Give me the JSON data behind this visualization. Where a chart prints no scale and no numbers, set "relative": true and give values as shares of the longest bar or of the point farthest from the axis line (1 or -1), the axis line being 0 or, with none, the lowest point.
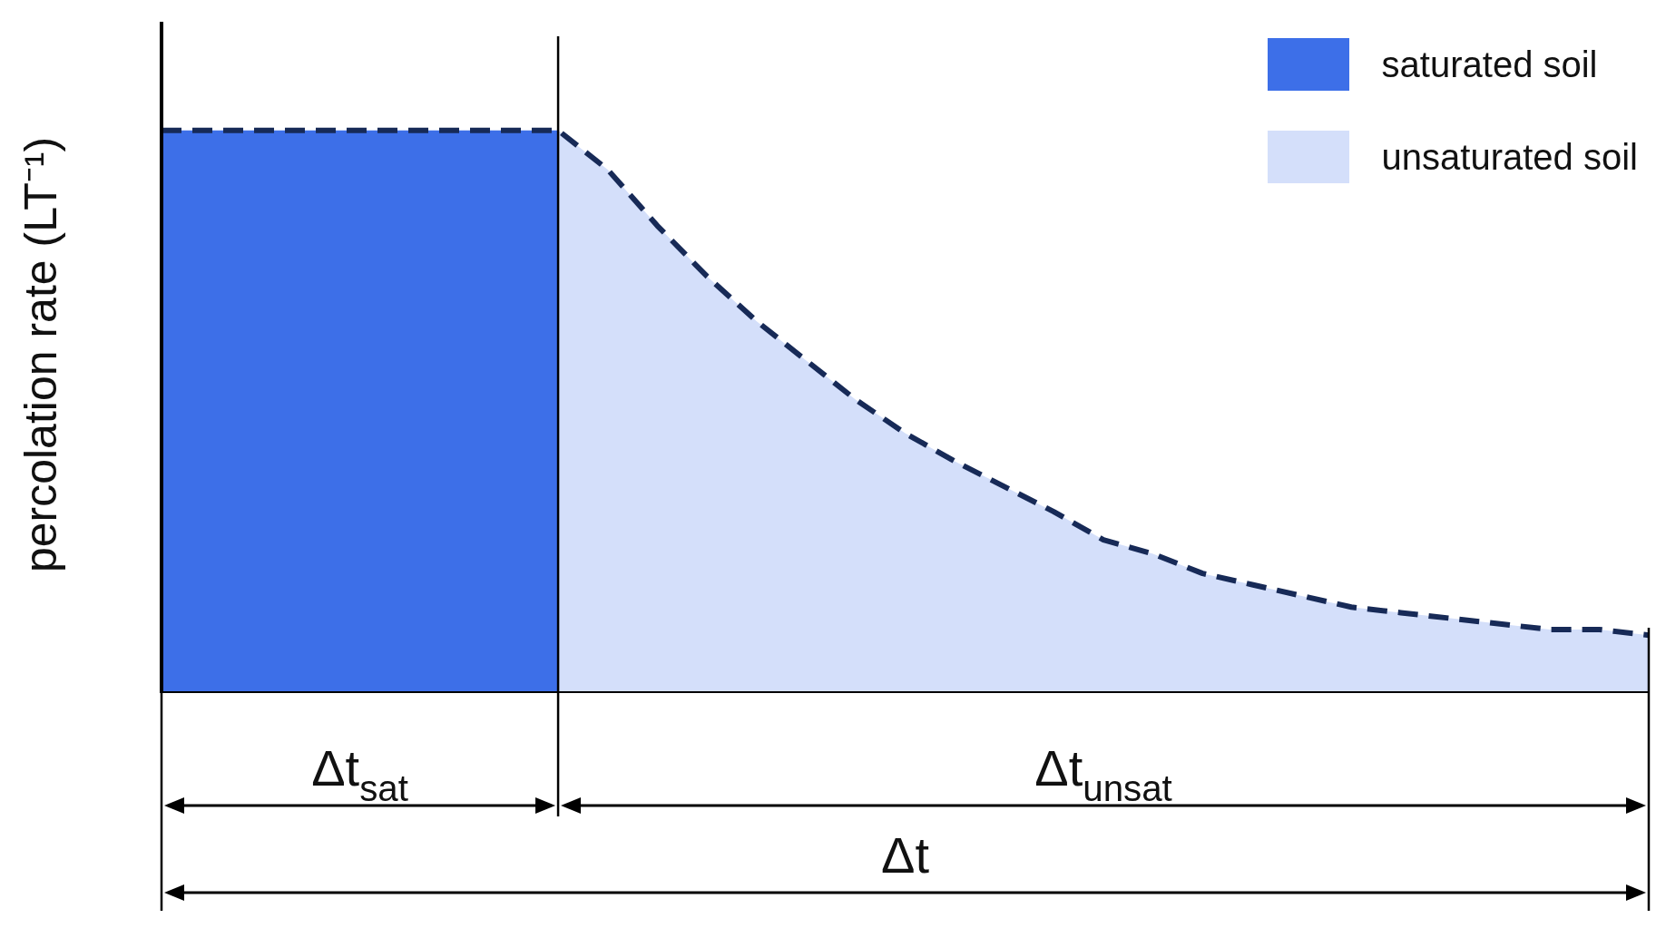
{
  "chart_data": {
    "type": "area",
    "relative": true,
    "ylabel": "percolation rate (LT⁻¹)",
    "legend": "top right",
    "line_style": "dashed",
    "marker": "none",
    "categories": [
      null,
      null,
      null,
      null,
      null,
      null,
      null,
      null,
      null,
      null,
      null,
      null,
      null,
      null,
      null,
      null,
      null,
      null,
      null,
      null,
      null,
      null,
      null,
      null,
      null,
      null,
      null,
      null,
      null,
      null,
      null
    ],
    "series": [
      {
        "name": "saturated soil",
        "color": "#3d6fe8",
        "values": [
          1,
          1,
          1,
          1,
          1,
          1,
          1,
          1,
          1,
          null,
          null,
          null,
          null,
          null,
          null,
          null,
          null,
          null,
          null,
          null,
          null,
          null,
          null,
          null,
          null,
          null,
          null,
          null,
          null,
          null,
          null
        ]
      },
      {
        "name": "unsaturated soil",
        "color": "#d4dffa",
        "values": [
          null,
          null,
          null,
          null,
          null,
          null,
          null,
          null,
          1,
          0.93,
          0.83,
          0.74,
          0.66,
          0.59,
          0.52,
          0.46,
          0.41,
          0.365,
          0.32,
          0.27,
          0.245,
          0.21,
          0.19,
          0.17,
          0.15,
          0.14,
          0.13,
          0.12,
          0.11,
          0.11,
          0.1
        ]
      },
      {
        "type": "line",
        "color": "#172a57",
        "values": [
          1,
          1,
          1,
          1,
          1,
          1,
          1,
          1,
          1,
          0.93,
          0.83,
          0.74,
          0.66,
          0.59,
          0.52,
          0.46,
          0.41,
          0.365,
          0.32,
          0.27,
          0.245,
          0.21,
          0.19,
          0.17,
          0.15,
          0.14,
          0.13,
          0.12,
          0.11,
          0.11,
          0.1
        ]
      }
    ],
    "annotations": [
      "Δt$_{sat}$",
      "Δt$_{unsat}$",
      "Δt"
    ]
  }
}
